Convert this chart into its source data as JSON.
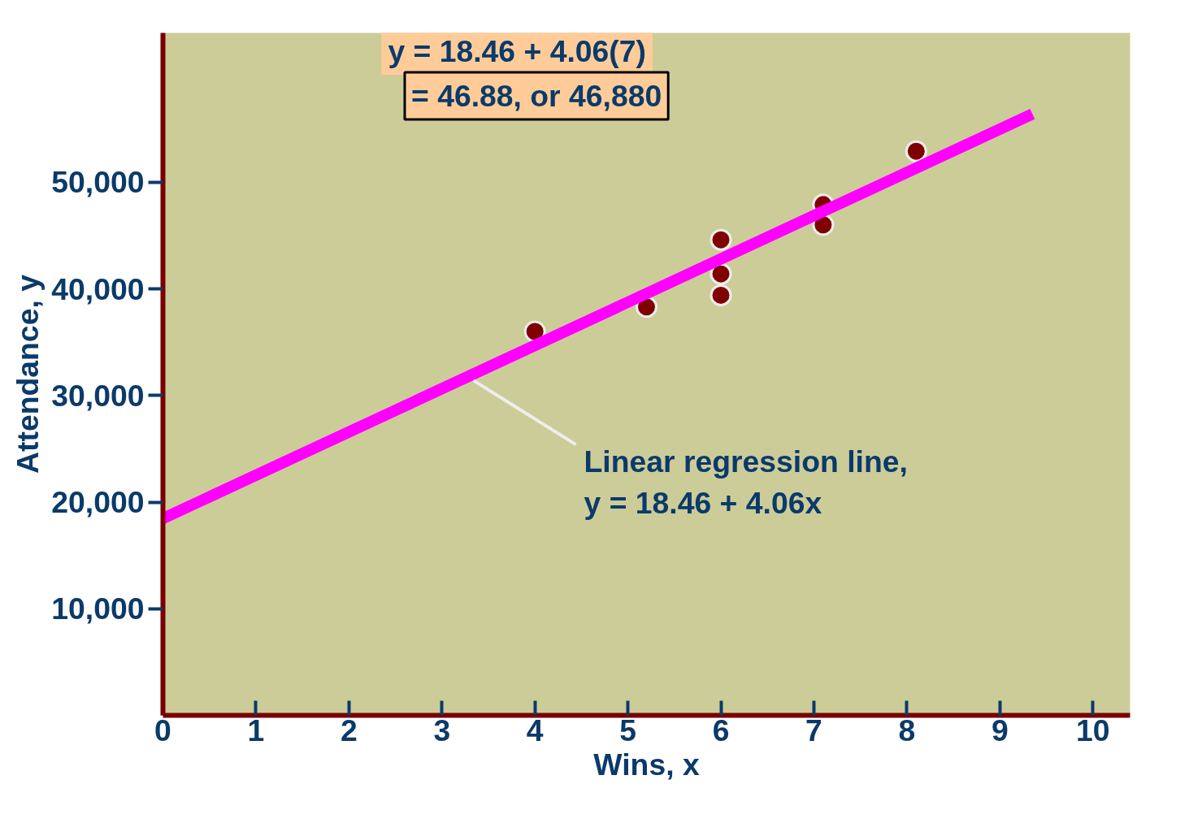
{
  "chart_data": {
    "type": "scatter",
    "xlabel": "Wins, x",
    "ylabel": "Attendance, y",
    "xlim": [
      0,
      10.4
    ],
    "ylim": [
      0,
      64000
    ],
    "xticks": [
      0,
      1,
      2,
      3,
      4,
      5,
      6,
      7,
      8,
      9,
      10
    ],
    "yticks": [
      {
        "value": 10000,
        "label": "10,000"
      },
      {
        "value": 20000,
        "label": "20,000"
      },
      {
        "value": 30000,
        "label": "30,000"
      },
      {
        "value": 40000,
        "label": "40,000"
      },
      {
        "value": 50000,
        "label": "50,000"
      }
    ],
    "grid": false,
    "series": [
      {
        "marker": "circle",
        "color": "#800000",
        "x": [
          4,
          5.2,
          6,
          6,
          6,
          7.1,
          7.1,
          8.1
        ],
        "values": [
          36000,
          38300,
          44600,
          41400,
          39400,
          47900,
          46000,
          52900
        ]
      },
      {
        "type": "line",
        "color": "#ff00ff",
        "x": [
          0,
          9.35
        ],
        "values": [
          18460,
          56400
        ]
      }
    ],
    "annotations": [
      "y = 18.46 + 4.06(7)",
      "= 46.88, or 46,880",
      {
        "text": "Linear regression line, y = 18.46 + 4.06x",
        "x": 3.34,
        "y": 31400
      }
    ]
  }
}
